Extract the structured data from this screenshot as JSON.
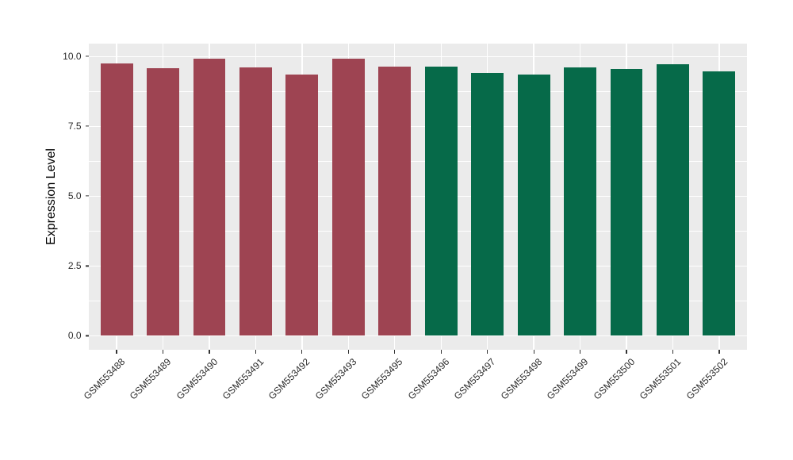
{
  "chart_data": {
    "type": "bar",
    "title": "",
    "xlabel": "",
    "ylabel": "Expression Level",
    "ylim": [
      -0.5,
      10.46
    ],
    "y_ticks": [
      "0.0",
      "2.5",
      "5.0",
      "7.5",
      "10.0"
    ],
    "y_tick_values": [
      0,
      2.5,
      5,
      7.5,
      10
    ],
    "y_minor_tick_values": [
      1.25,
      3.75,
      6.25,
      8.75
    ],
    "grid": "on",
    "legend": "none",
    "categories": [
      "GSM553488",
      "GSM553489",
      "GSM553490",
      "GSM553491",
      "GSM553492",
      "GSM553493",
      "GSM553495",
      "GSM553496",
      "GSM553497",
      "GSM553498",
      "GSM553499",
      "GSM553500",
      "GSM553501",
      "GSM553502"
    ],
    "values": [
      9.75,
      9.57,
      9.93,
      9.62,
      9.35,
      9.93,
      9.64,
      9.65,
      9.42,
      9.35,
      9.62,
      9.55,
      9.72,
      9.48
    ],
    "groups": [
      "A",
      "A",
      "A",
      "A",
      "A",
      "A",
      "A",
      "B",
      "B",
      "B",
      "B",
      "B",
      "B",
      "B"
    ],
    "group_colors": {
      "A": "#9E4452",
      "B": "#066A49"
    },
    "panel_bg": "#EBEBEB",
    "grid_color": "#FFFFFF",
    "bar_width_fraction": 0.7
  }
}
